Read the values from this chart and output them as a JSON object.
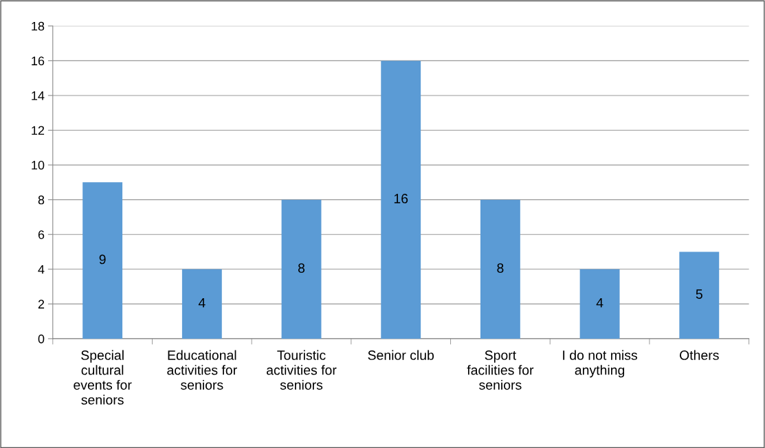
{
  "chart_data": {
    "type": "bar",
    "categories": [
      "Special\ncultural\nevents for\nseniors",
      "Educational\nactivities for\nseniors",
      "Touristic\nactivities for\nseniors",
      "Senior club",
      "Sport\nfacilities for\nseniors",
      "I do not miss\nanything",
      "Others"
    ],
    "values": [
      9,
      4,
      8,
      16,
      8,
      4,
      5
    ],
    "color": "#5b9bd5",
    "ylim": [
      0,
      18
    ],
    "yticks": [
      0,
      2,
      4,
      6,
      8,
      10,
      12,
      14,
      16,
      18
    ],
    "grid": "y",
    "data_labels": true,
    "legend": false
  }
}
